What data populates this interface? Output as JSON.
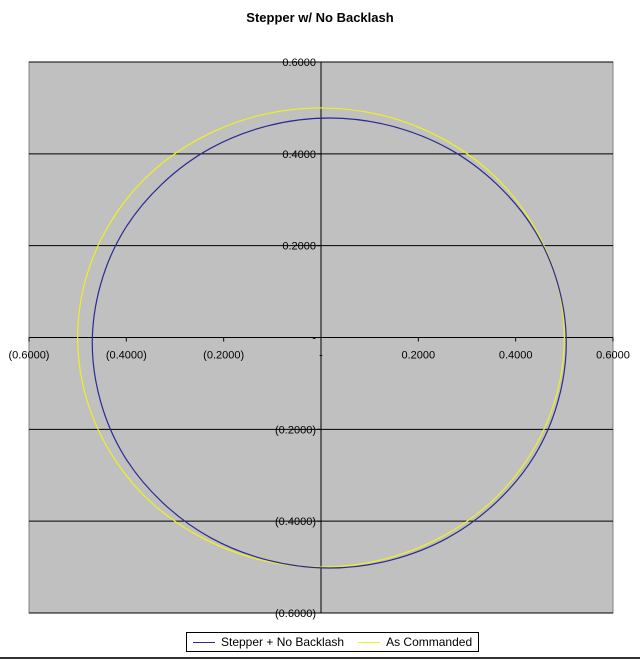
{
  "chart_data": {
    "type": "scatter",
    "title": "Stepper w/ No Backlash",
    "xlim": [
      -0.6,
      0.6
    ],
    "ylim": [
      -0.6,
      0.6
    ],
    "x_ticks": [
      -0.6,
      -0.4,
      -0.2,
      0,
      0.2,
      0.4,
      0.6
    ],
    "x_tick_labels": [
      "(0.6000)",
      "(0.4000)",
      "(0.2000)",
      "-",
      "0.2000",
      "0.4000",
      "0.6000"
    ],
    "y_ticks": [
      0.6,
      0.4,
      0.2,
      0,
      -0.2,
      -0.4,
      -0.6
    ],
    "y_tick_labels": [
      "0.6000",
      "0.4000",
      "0.2000",
      "-",
      "(0.2000)",
      "(0.4000)",
      "(0.6000)"
    ],
    "grid": "horizontal major",
    "plot_background": "#c0c0c0",
    "legend_placement": "bottom",
    "series": [
      {
        "name": "Stepper + No Backlash",
        "color": "#2b2b8f",
        "points": [
          [
            0.504,
            -0.012
          ],
          [
            0.487,
            0.115
          ],
          [
            0.439,
            0.233
          ],
          [
            0.361,
            0.334
          ],
          [
            0.261,
            0.412
          ],
          [
            0.143,
            0.461
          ],
          [
            0.017,
            0.478
          ],
          [
            -0.109,
            0.461
          ],
          [
            -0.227,
            0.412
          ],
          [
            -0.327,
            0.334
          ],
          [
            -0.405,
            0.233
          ],
          [
            -0.453,
            0.115
          ],
          [
            -0.47,
            -0.012
          ],
          [
            -0.453,
            -0.139
          ],
          [
            -0.405,
            -0.257
          ],
          [
            -0.327,
            -0.358
          ],
          [
            -0.227,
            -0.436
          ],
          [
            -0.109,
            -0.485
          ],
          [
            0.017,
            -0.502
          ],
          [
            0.143,
            -0.485
          ],
          [
            0.261,
            -0.436
          ],
          [
            0.361,
            -0.358
          ],
          [
            0.439,
            -0.257
          ],
          [
            0.487,
            -0.139
          ]
        ]
      },
      {
        "name": "As Commanded",
        "color": "#f0f020",
        "points": [
          [
            0.5,
            0
          ],
          [
            0.483,
            0.129
          ],
          [
            0.433,
            0.25
          ],
          [
            0.354,
            0.354
          ],
          [
            0.25,
            0.433
          ],
          [
            0.129,
            0.483
          ],
          [
            0,
            0.5
          ],
          [
            -0.129,
            0.483
          ],
          [
            -0.25,
            0.433
          ],
          [
            -0.354,
            0.354
          ],
          [
            -0.433,
            0.25
          ],
          [
            -0.483,
            0.129
          ],
          [
            -0.5,
            0
          ],
          [
            -0.483,
            -0.129
          ],
          [
            -0.433,
            -0.25
          ],
          [
            -0.354,
            -0.354
          ],
          [
            -0.25,
            -0.433
          ],
          [
            -0.129,
            -0.483
          ],
          [
            0,
            -0.5
          ],
          [
            0.129,
            -0.483
          ],
          [
            0.25,
            -0.433
          ],
          [
            0.354,
            -0.354
          ],
          [
            0.433,
            -0.25
          ],
          [
            0.483,
            -0.129
          ]
        ]
      }
    ]
  }
}
